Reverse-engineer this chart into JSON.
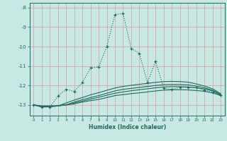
{
  "xlabel": "Humidex (Indice chaleur)",
  "bg_color": "#c8e8e4",
  "grid_color": "#d8a8a8",
  "line_color": "#1a6b60",
  "xlim": [
    -0.5,
    23.5
  ],
  "ylim": [
    -13.55,
    -7.75
  ],
  "yticks": [
    -13,
    -12,
    -11,
    -10,
    -9,
    -8
  ],
  "xticks": [
    0,
    1,
    2,
    3,
    4,
    5,
    6,
    7,
    8,
    9,
    10,
    11,
    12,
    13,
    14,
    15,
    16,
    17,
    18,
    19,
    20,
    21,
    22,
    23
  ],
  "main_x": [
    0,
    1,
    2,
    3,
    4,
    5,
    6,
    7,
    8,
    9,
    10,
    11,
    12,
    13,
    14,
    15,
    16,
    17,
    18,
    19,
    20,
    21,
    22,
    23
  ],
  "main_y": [
    -13.0,
    -13.1,
    -13.1,
    -12.55,
    -12.2,
    -12.3,
    -11.85,
    -11.1,
    -11.05,
    -10.0,
    -8.35,
    -8.3,
    -10.1,
    -10.35,
    -11.85,
    -10.75,
    -12.15,
    -12.2,
    -12.1,
    -12.1,
    -12.1,
    -12.25,
    -12.35,
    -12.5
  ],
  "smooth_lines": [
    [
      -13.0,
      -13.05,
      -13.05,
      -13.05,
      -13.0,
      -12.95,
      -12.85,
      -12.78,
      -12.72,
      -12.62,
      -12.52,
      -12.47,
      -12.42,
      -12.38,
      -12.33,
      -12.28,
      -12.24,
      -12.22,
      -12.22,
      -12.23,
      -12.26,
      -12.3,
      -12.38,
      -12.52
    ],
    [
      -13.0,
      -13.06,
      -13.06,
      -13.04,
      -12.99,
      -12.9,
      -12.8,
      -12.7,
      -12.61,
      -12.5,
      -12.4,
      -12.33,
      -12.27,
      -12.22,
      -12.17,
      -12.12,
      -12.08,
      -12.06,
      -12.06,
      -12.08,
      -12.12,
      -12.18,
      -12.28,
      -12.48
    ],
    [
      -13.0,
      -13.09,
      -13.08,
      -13.05,
      -13.0,
      -12.85,
      -12.73,
      -12.62,
      -12.52,
      -12.4,
      -12.28,
      -12.2,
      -12.15,
      -12.1,
      -12.05,
      -12.0,
      -11.96,
      -11.95,
      -11.95,
      -11.97,
      -12.03,
      -12.12,
      -12.24,
      -12.46
    ],
    [
      -13.0,
      -13.1,
      -13.1,
      -13.05,
      -12.9,
      -12.75,
      -12.62,
      -12.48,
      -12.37,
      -12.25,
      -12.13,
      -12.05,
      -11.99,
      -11.94,
      -11.89,
      -11.84,
      -11.8,
      -11.79,
      -11.8,
      -11.83,
      -11.92,
      -12.03,
      -12.17,
      -12.42
    ]
  ]
}
